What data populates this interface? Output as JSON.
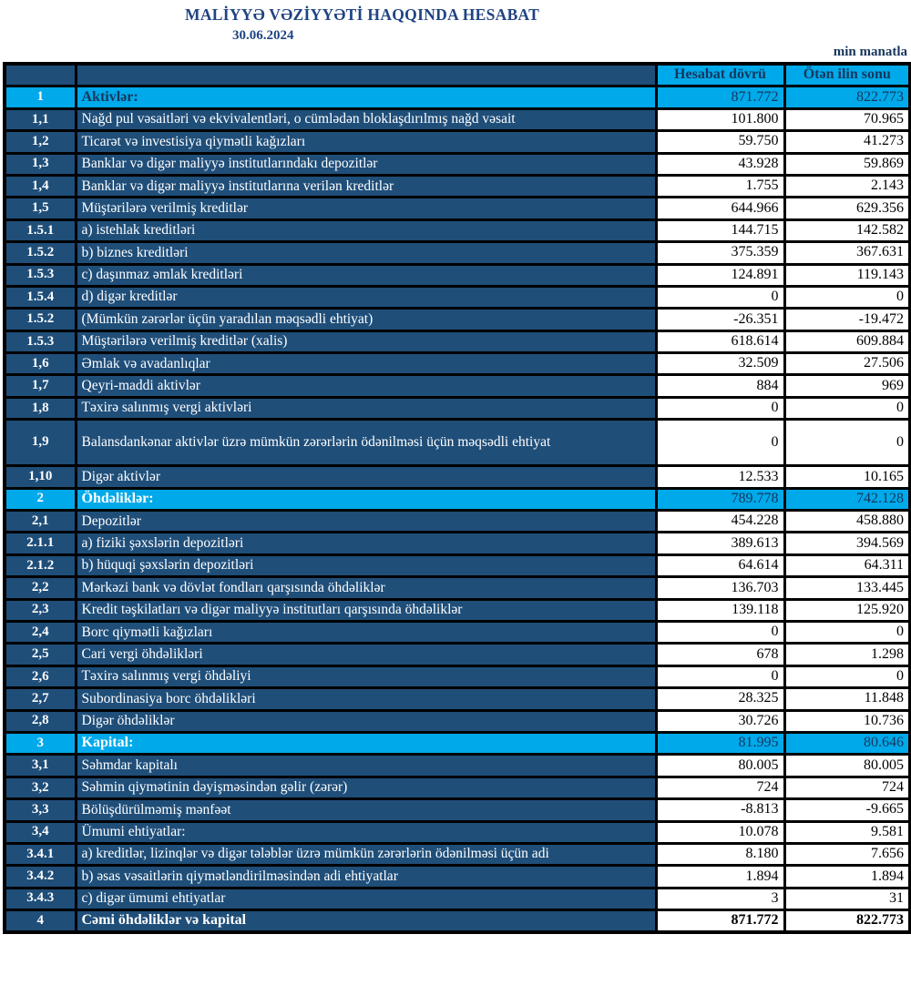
{
  "header": {
    "title": "MALİYYƏ VƏZİYYƏTİ HAQQINDA HESABAT",
    "date": "30.06.2024",
    "unit": "min manatla"
  },
  "colors": {
    "navy": "#1F4E79",
    "cyan": "#00A9E9",
    "header_text": "#17365D",
    "title_text": "#1F4383"
  },
  "table": {
    "col1": "Hesabat dövrü",
    "col2": "Ötən ilin sonu",
    "rows": [
      {
        "no": "1",
        "label": "Aktivlər:",
        "current": "871.772",
        "previous": "822.773",
        "type": "section",
        "label_dark": true
      },
      {
        "no": "1,1",
        "label": "Nağd pul vəsaitləri və ekvivalentləri, o cümlədən bloklaşdırılmış nağd vəsait",
        "current": "101.800",
        "previous": "70.965",
        "type": "normal"
      },
      {
        "no": "1,2",
        "label": "Ticarət və investisiya qiymətli kağızları",
        "current": "59.750",
        "previous": "41.273",
        "type": "normal"
      },
      {
        "no": "1,3",
        "label": "Banklar və digər maliyyə institutlarındakı depozitlər",
        "current": "43.928",
        "previous": "59.869",
        "type": "normal"
      },
      {
        "no": "1,4",
        "label": "Banklar və digər maliyyə institutlarına verilən kreditlər",
        "current": "1.755",
        "previous": "2.143",
        "type": "normal"
      },
      {
        "no": "1,5",
        "label": "Müştərilərə verilmiş kreditlər",
        "current": "644.966",
        "previous": "629.356",
        "type": "normal"
      },
      {
        "no": "1.5.1",
        "label": "a) istehlak kreditləri",
        "current": "144.715",
        "previous": "142.582",
        "type": "normal"
      },
      {
        "no": "1.5.2",
        "label": "b) biznes kreditləri",
        "current": "375.359",
        "previous": "367.631",
        "type": "normal"
      },
      {
        "no": "1.5.3",
        "label": "c) daşınmaz əmlak kreditləri",
        "current": "124.891",
        "previous": "119.143",
        "type": "normal"
      },
      {
        "no": "1.5.4",
        "label": "d) digər kreditlər",
        "current": "0",
        "previous": "0",
        "type": "normal"
      },
      {
        "no": "1.5.2",
        "label": "(Mümkün zərərlər üçün yaradılan məqsədli ehtiyat)",
        "current": "-26.351",
        "previous": "-19.472",
        "type": "normal"
      },
      {
        "no": "1.5.3",
        "label": "Müştərilərə verilmiş kreditlər (xalis)",
        "current": "618.614",
        "previous": "609.884",
        "type": "normal"
      },
      {
        "no": "1,6",
        "label": "Əmlak və avadanlıqlar",
        "current": "32.509",
        "previous": "27.506",
        "type": "normal"
      },
      {
        "no": "1,7",
        "label": "Qeyri-maddi aktivlər",
        "current": "884",
        "previous": "969",
        "type": "normal"
      },
      {
        "no": "1,8",
        "label": "Təxirə salınmış vergi aktivləri",
        "current": "0",
        "previous": "0",
        "type": "normal"
      },
      {
        "no": "1,9",
        "label": "Balansdankənar aktivlər üzrə mümkün zərərlərin ödənilməsi üçün məqsədli ehtiyat",
        "current": "0",
        "previous": "0",
        "type": "normal",
        "tall": true
      },
      {
        "no": "1,10",
        "label": "Digər aktivlər",
        "current": "12.533",
        "previous": "10.165",
        "type": "normal"
      },
      {
        "no": "2",
        "label": "Öhdəliklər:",
        "current": "789.778",
        "previous": "742.128",
        "type": "section"
      },
      {
        "no": "2,1",
        "label": "Depozitlər",
        "current": "454.228",
        "previous": "458.880",
        "type": "normal"
      },
      {
        "no": "2.1.1",
        "label": "a) fiziki şəxslərin depozitləri",
        "current": "389.613",
        "previous": "394.569",
        "type": "normal"
      },
      {
        "no": "2.1.2",
        "label": "b) hüquqi şəxslərin depozitləri",
        "current": "64.614",
        "previous": "64.311",
        "type": "normal"
      },
      {
        "no": "2,2",
        "label": "Mərkəzi bank və dövlət fondları qarşısında öhdəliklər",
        "current": "136.703",
        "previous": "133.445",
        "type": "normal"
      },
      {
        "no": "2,3",
        "label": "Kredit təşkilatları və digər maliyyə institutları qarşısında öhdəliklər",
        "current": "139.118",
        "previous": "125.920",
        "type": "normal"
      },
      {
        "no": "2,4",
        "label": "Borc qiymətli kağızları",
        "current": "0",
        "previous": "0",
        "type": "normal"
      },
      {
        "no": "2,5",
        "label": "Cari vergi öhdəlikləri",
        "current": "678",
        "previous": "1.298",
        "type": "normal"
      },
      {
        "no": "2,6",
        "label": "Təxirə salınmış vergi öhdəliyi",
        "current": "0",
        "previous": "0",
        "type": "normal"
      },
      {
        "no": "2,7",
        "label": "Subordinasiya borc öhdəlikləri",
        "current": "28.325",
        "previous": "11.848",
        "type": "normal"
      },
      {
        "no": "2,8",
        "label": "Digər öhdəliklər",
        "current": "30.726",
        "previous": "10.736",
        "type": "normal"
      },
      {
        "no": "3",
        "label": "Kapital:",
        "current": "81.995",
        "previous": "80.646",
        "type": "section"
      },
      {
        "no": "3,1",
        "label": "Səhmdar kapitalı",
        "current": "80.005",
        "previous": "80.005",
        "type": "normal"
      },
      {
        "no": "3,2",
        "label": "Səhmin qiymətinin dəyişməsindən gəlir (zərər)",
        "current": "724",
        "previous": "724",
        "type": "normal"
      },
      {
        "no": "3,3",
        "label": "Bölüşdürülməmiş mənfəət",
        "current": "-8.813",
        "previous": "-9.665",
        "type": "normal"
      },
      {
        "no": "3,4",
        "label": "Ümumi ehtiyatlar:",
        "current": "10.078",
        "previous": "9.581",
        "type": "normal"
      },
      {
        "no": "3.4.1",
        "label": "a) kreditlər, lizinqlər və digər tələblər üzrə mümkün zərərlərin ödənilməsi üçün adi",
        "current": "8.180",
        "previous": "7.656",
        "type": "normal"
      },
      {
        "no": "3.4.2",
        "label": "b) əsas vəsaitlərin qiymətləndirilməsindən adi ehtiyatlar",
        "current": "1.894",
        "previous": "1.894",
        "type": "normal"
      },
      {
        "no": "3.4.3",
        "label": "c) digər ümumi ehtiyatlar",
        "current": "3",
        "previous": "31",
        "type": "normal"
      },
      {
        "no": "4",
        "label": "Cəmi öhdəliklər və kapital",
        "current": "871.772",
        "previous": "822.773",
        "type": "total"
      }
    ]
  }
}
